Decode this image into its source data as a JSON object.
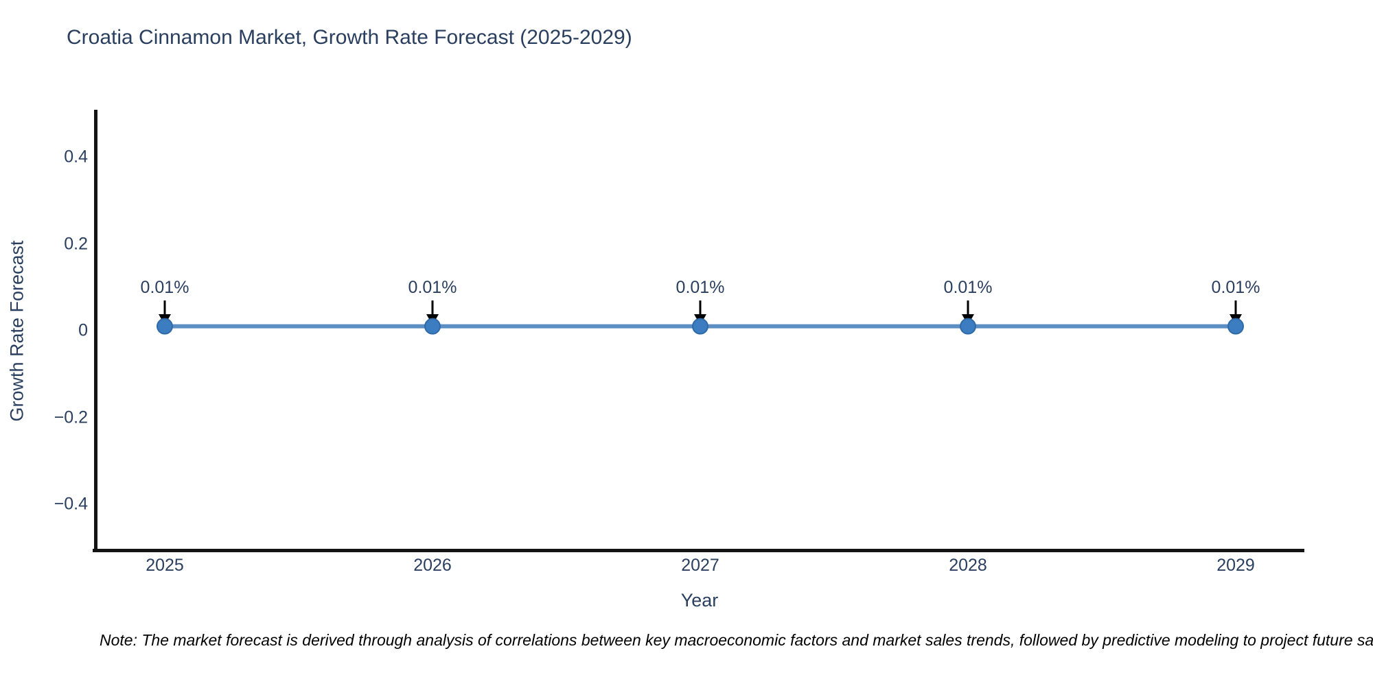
{
  "chart_data": {
    "type": "line",
    "title": "Croatia Cinnamon Market, Growth Rate Forecast (2025-2029)",
    "xlabel": "Year",
    "ylabel": "Growth Rate Forecast",
    "x": [
      2025,
      2026,
      2027,
      2028,
      2029
    ],
    "series": [
      {
        "name": "Growth Rate Forecast",
        "values": [
          0.01,
          0.01,
          0.01,
          0.01,
          0.01
        ]
      }
    ],
    "point_labels": [
      "0.01%",
      "0.01%",
      "0.01%",
      "0.01%",
      "0.01%"
    ],
    "xticks": [
      "2025",
      "2026",
      "2027",
      "2028",
      "2029"
    ],
    "yticks": [
      "0.4",
      "0.2",
      "0",
      "−0.2",
      "−0.4"
    ],
    "ytick_values": [
      0.4,
      0.2,
      0,
      -0.2,
      -0.4
    ],
    "ylim": [
      -0.5,
      0.51
    ],
    "grid": false,
    "legend": "none",
    "note": "Note: The market forecast is derived through analysis of correlations between key macroeconomic factors and market sales trends, followed by predictive modeling to project future sa"
  },
  "colors": {
    "line": "#5b8fc4",
    "marker_fill": "#3c7cc0",
    "marker_edge": "#2f6aa8",
    "arrow": "#000000",
    "axis_text": "#2a3f5f",
    "spine": "#141414",
    "note_text": "#000000",
    "background": "#ffffff"
  }
}
